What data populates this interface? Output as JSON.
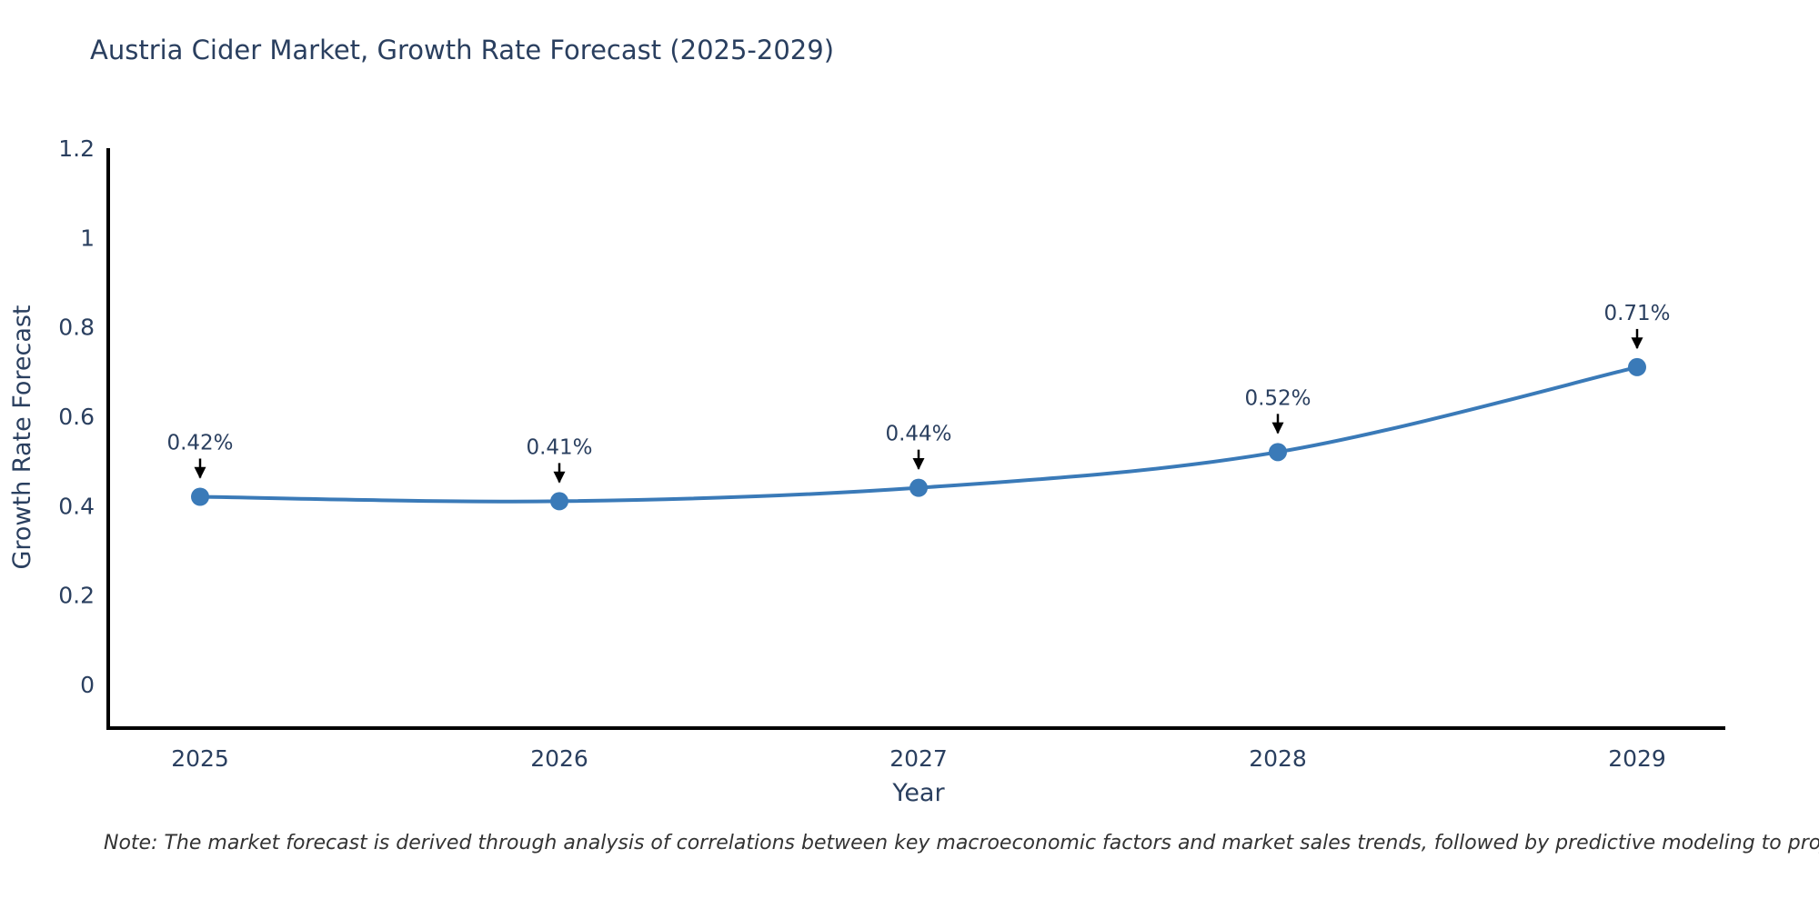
{
  "note": "Note: The market forecast is derived through analysis of correlations between key macroeconomic factors and market sales trends, followed by predictive modeling to project future sales",
  "chart_data": {
    "type": "line",
    "title": "Austria Cider Market, Growth Rate Forecast (2025-2029)",
    "xlabel": "Year",
    "ylabel": "Growth Rate Forecast",
    "categories": [
      "2025",
      "2026",
      "2027",
      "2028",
      "2029"
    ],
    "values": [
      0.42,
      0.41,
      0.44,
      0.52,
      0.71
    ],
    "point_labels": [
      "0.42%",
      "0.41%",
      "0.44%",
      "0.52%",
      "0.71%"
    ],
    "ytick_values": [
      0,
      0.2,
      0.4,
      0.6,
      0.8,
      1.0,
      1.2
    ],
    "ytick_labels": [
      "0",
      "0.2",
      "0.4",
      "0.6",
      "0.8",
      "1",
      "1.2"
    ],
    "ylim": [
      0,
      1.2
    ],
    "grid": false,
    "legend": "none",
    "line_color": "#3a7ab8",
    "marker_color": "#3a7ab8",
    "axis_color": "#000000",
    "text_color": "#2a3f5f",
    "annotation_arrow_color": "#000000",
    "line_shape": "spline"
  }
}
